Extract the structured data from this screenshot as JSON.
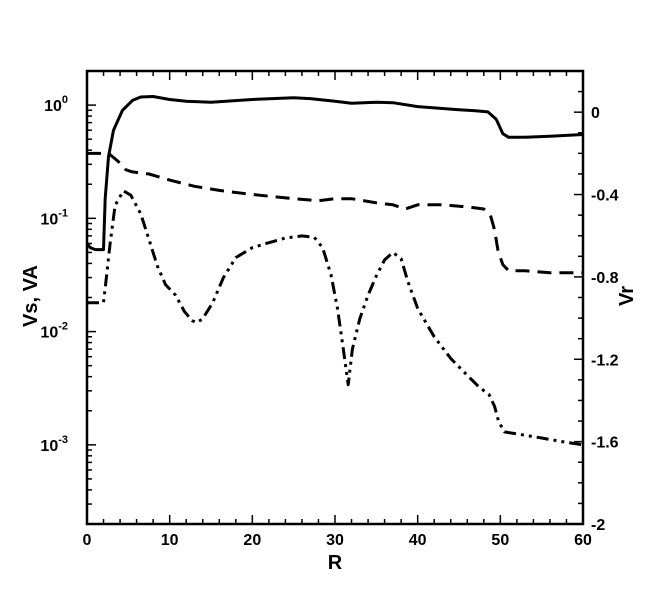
{
  "chart_data": {
    "type": "line",
    "title": "",
    "xlabel": "R",
    "ylabel_left": "Vs, VA",
    "ylabel_right": "Vr",
    "xlim": [
      0,
      60
    ],
    "ylim_left": [
      0.0002,
      2.0
    ],
    "ylim_right": [
      -2.0,
      0.2
    ],
    "yscale_left": "log",
    "yscale_right": "linear",
    "x_ticks": [
      "0",
      "10",
      "20",
      "30",
      "40",
      "50",
      "60"
    ],
    "left_ticks": [
      {
        "base": "10",
        "exp": "0",
        "value": 1.0
      },
      {
        "base": "10",
        "exp": "-1",
        "value": 0.1
      },
      {
        "base": "10",
        "exp": "-2",
        "value": 0.01
      },
      {
        "base": "10",
        "exp": "-3",
        "value": 0.001
      }
    ],
    "right_ticks": [
      "0",
      "-0.4",
      "-0.8",
      "-1.2",
      "-1.6",
      "-2"
    ],
    "grid": false,
    "legend": "none",
    "series": [
      {
        "axis": "left",
        "style": "solid",
        "color": "#000000",
        "points": [
          [
            0,
            0.06
          ],
          [
            0.4,
            0.055
          ],
          [
            1,
            0.053
          ],
          [
            2,
            0.053
          ],
          [
            2.2,
            0.15
          ],
          [
            2.6,
            0.35
          ],
          [
            3.2,
            0.6
          ],
          [
            4.3,
            0.9
          ],
          [
            5.5,
            1.1
          ],
          [
            6.5,
            1.18
          ],
          [
            8,
            1.19
          ],
          [
            10,
            1.12
          ],
          [
            12,
            1.08
          ],
          [
            15,
            1.06
          ],
          [
            20,
            1.12
          ],
          [
            25,
            1.16
          ],
          [
            27,
            1.14
          ],
          [
            30,
            1.08
          ],
          [
            32,
            1.04
          ],
          [
            35,
            1.06
          ],
          [
            37,
            1.05
          ],
          [
            40,
            0.97
          ],
          [
            45,
            0.91
          ],
          [
            47,
            0.89
          ],
          [
            48.5,
            0.87
          ],
          [
            49.5,
            0.75
          ],
          [
            50.3,
            0.56
          ],
          [
            51,
            0.52
          ],
          [
            53,
            0.52
          ],
          [
            56,
            0.53
          ],
          [
            60,
            0.55
          ]
        ]
      },
      {
        "axis": "right",
        "style": "dashed",
        "color": "#000000",
        "points": [
          [
            0,
            -0.2
          ],
          [
            1.5,
            -0.2
          ],
          [
            2.6,
            -0.2
          ],
          [
            3.2,
            -0.22
          ],
          [
            3.8,
            -0.24
          ],
          [
            4.7,
            -0.28
          ],
          [
            5.5,
            -0.29
          ],
          [
            7.5,
            -0.3
          ],
          [
            10,
            -0.33
          ],
          [
            13,
            -0.36
          ],
          [
            16,
            -0.38
          ],
          [
            20,
            -0.4
          ],
          [
            25,
            -0.42
          ],
          [
            28,
            -0.43
          ],
          [
            30,
            -0.42
          ],
          [
            32,
            -0.42
          ],
          [
            35,
            -0.44
          ],
          [
            37,
            -0.45
          ],
          [
            38.5,
            -0.47
          ],
          [
            40,
            -0.45
          ],
          [
            43,
            -0.45
          ],
          [
            46,
            -0.46
          ],
          [
            48,
            -0.47
          ],
          [
            48.8,
            -0.5
          ],
          [
            49.3,
            -0.57
          ],
          [
            49.7,
            -0.67
          ],
          [
            50.3,
            -0.74
          ],
          [
            51,
            -0.77
          ],
          [
            53,
            -0.77
          ],
          [
            56,
            -0.78
          ],
          [
            60,
            -0.78
          ]
        ]
      },
      {
        "axis": "left",
        "style": "dash-dot-dot",
        "color": "#000000",
        "points": [
          [
            0,
            0.018
          ],
          [
            1,
            0.018
          ],
          [
            2,
            0.018
          ],
          [
            2.3,
            0.028
          ],
          [
            2.8,
            0.06
          ],
          [
            3.4,
            0.13
          ],
          [
            4.4,
            0.175
          ],
          [
            5.3,
            0.16
          ],
          [
            6.5,
            0.11
          ],
          [
            7.5,
            0.065
          ],
          [
            8.5,
            0.038
          ],
          [
            9.5,
            0.026
          ],
          [
            10.7,
            0.021
          ],
          [
            11.8,
            0.015
          ],
          [
            12.7,
            0.0125
          ],
          [
            13.3,
            0.012
          ],
          [
            14,
            0.013
          ],
          [
            15.2,
            0.018
          ],
          [
            16.5,
            0.03
          ],
          [
            18,
            0.045
          ],
          [
            20,
            0.055
          ],
          [
            22,
            0.061
          ],
          [
            24,
            0.067
          ],
          [
            26,
            0.07
          ],
          [
            27.5,
            0.068
          ],
          [
            28.5,
            0.055
          ],
          [
            29.5,
            0.032
          ],
          [
            30.3,
            0.016
          ],
          [
            31,
            0.007
          ],
          [
            31.6,
            0.0034
          ],
          [
            32.1,
            0.007
          ],
          [
            33,
            0.013
          ],
          [
            34,
            0.021
          ],
          [
            35,
            0.031
          ],
          [
            36,
            0.043
          ],
          [
            37,
            0.05
          ],
          [
            38,
            0.044
          ],
          [
            38.8,
            0.028
          ],
          [
            40,
            0.016
          ],
          [
            42,
            0.009
          ],
          [
            44,
            0.0058
          ],
          [
            46,
            0.0041
          ],
          [
            47.5,
            0.0032
          ],
          [
            48.6,
            0.0028
          ],
          [
            49.3,
            0.0022
          ],
          [
            49.8,
            0.0016
          ],
          [
            50.5,
            0.0013
          ],
          [
            52,
            0.00125
          ],
          [
            55,
            0.00115
          ],
          [
            58,
            0.00105
          ],
          [
            60,
            0.001
          ]
        ]
      }
    ]
  }
}
